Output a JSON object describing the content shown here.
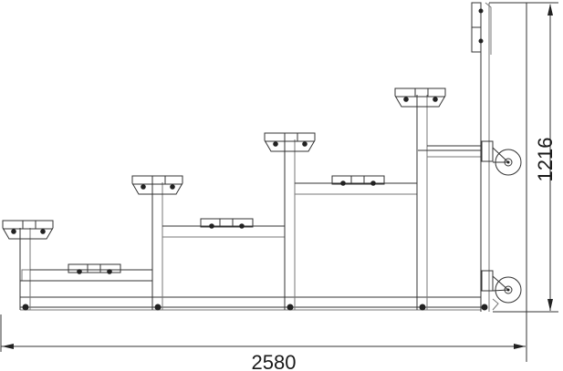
{
  "drawing": {
    "dimensions": {
      "overall_length": "2580",
      "overall_height": "1216"
    },
    "tiers": 4,
    "line_color": "#333333",
    "background": "#ffffff"
  }
}
